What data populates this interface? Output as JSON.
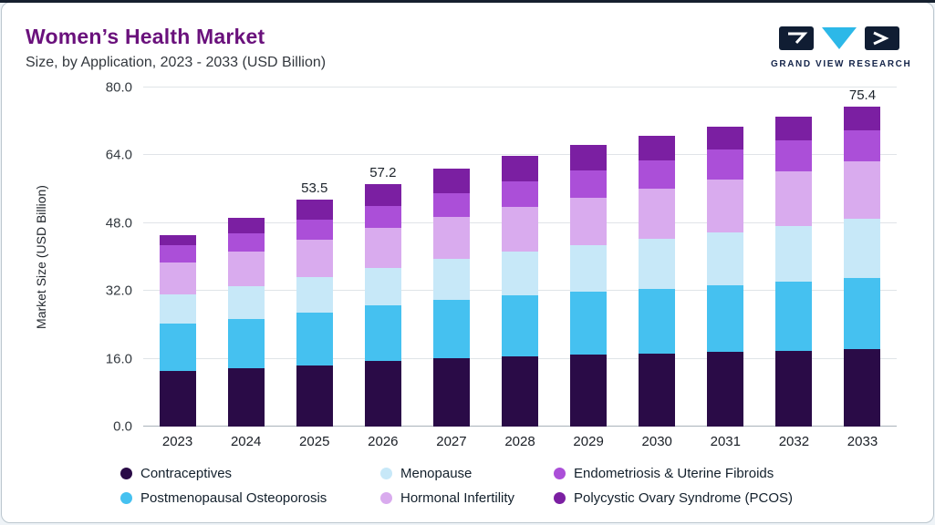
{
  "page": {
    "title": "Women’s Health Market",
    "subtitle": "Size, by Application, 2023 - 2033 (USD Billion)"
  },
  "logo": {
    "text": "GRAND VIEW RESEARCH"
  },
  "chart_data": {
    "type": "bar",
    "variant": "stacked",
    "title": "Women’s Health Market Size, by Application, 2023 - 2033 (USD Billion)",
    "ylabel": "Market Size (USD Billion)",
    "xlabel": "",
    "ylim": [
      0,
      80
    ],
    "yticks": [
      "0.0",
      "16.0",
      "32.0",
      "48.0",
      "64.0",
      "80.0"
    ],
    "grid": true,
    "legend_position": "bottom",
    "categories": [
      "2023",
      "2024",
      "2025",
      "2026",
      "2027",
      "2028",
      "2029",
      "2030",
      "2031",
      "2032",
      "2033"
    ],
    "series": [
      {
        "name": "Contraceptives",
        "color": "#2a0b47",
        "values": [
          13.2,
          13.7,
          14.5,
          15.5,
          16.2,
          16.6,
          17.0,
          17.3,
          17.6,
          17.9,
          18.2
        ]
      },
      {
        "name": "Postmenopausal Osteoporosis",
        "color": "#45c1f0",
        "values": [
          11.0,
          11.7,
          12.4,
          13.0,
          13.7,
          14.3,
          14.8,
          15.3,
          15.8,
          16.3,
          16.8
        ]
      },
      {
        "name": "Menopause",
        "color": "#c7e8f8",
        "values": [
          7.0,
          7.7,
          8.4,
          9.0,
          9.7,
          10.4,
          11.1,
          11.8,
          12.5,
          13.2,
          14.0
        ]
      },
      {
        "name": "Hormonal Infertility",
        "color": "#d9abee",
        "values": [
          7.5,
          8.1,
          8.7,
          9.3,
          9.9,
          10.5,
          11.1,
          11.7,
          12.3,
          12.9,
          13.5
        ]
      },
      {
        "name": "Endometriosis & Uterine Fibroids",
        "color": "#ab4fd8",
        "values": [
          4.0,
          4.4,
          4.8,
          5.2,
          5.6,
          6.0,
          6.4,
          6.8,
          7.1,
          7.3,
          7.5
        ]
      },
      {
        "name": "Polycystic Ovary Syndrome (PCOS)",
        "color": "#7b1fa2",
        "values": [
          2.5,
          3.6,
          4.7,
          5.2,
          5.7,
          6.1,
          6.0,
          5.7,
          5.5,
          5.5,
          5.4
        ]
      }
    ],
    "totals": [
      45.2,
      49.2,
      53.5,
      57.2,
      60.8,
      63.9,
      66.4,
      68.6,
      70.8,
      73.1,
      75.4
    ],
    "bar_labels": [
      "",
      "",
      "53.5",
      "57.2",
      "",
      "",
      "",
      "",
      "",
      "",
      "75.4"
    ]
  },
  "legend": {
    "items": [
      {
        "label": "Contraceptives",
        "color": "#2a0b47"
      },
      {
        "label": "Menopause",
        "color": "#c7e8f8"
      },
      {
        "label": "Endometriosis & Uterine Fibroids",
        "color": "#ab4fd8"
      },
      {
        "label": "Postmenopausal Osteoporosis",
        "color": "#45c1f0"
      },
      {
        "label": "Hormonal Infertility",
        "color": "#d9abee"
      },
      {
        "label": "Polycystic Ovary Syndrome (PCOS)",
        "color": "#7b1fa2"
      }
    ]
  }
}
